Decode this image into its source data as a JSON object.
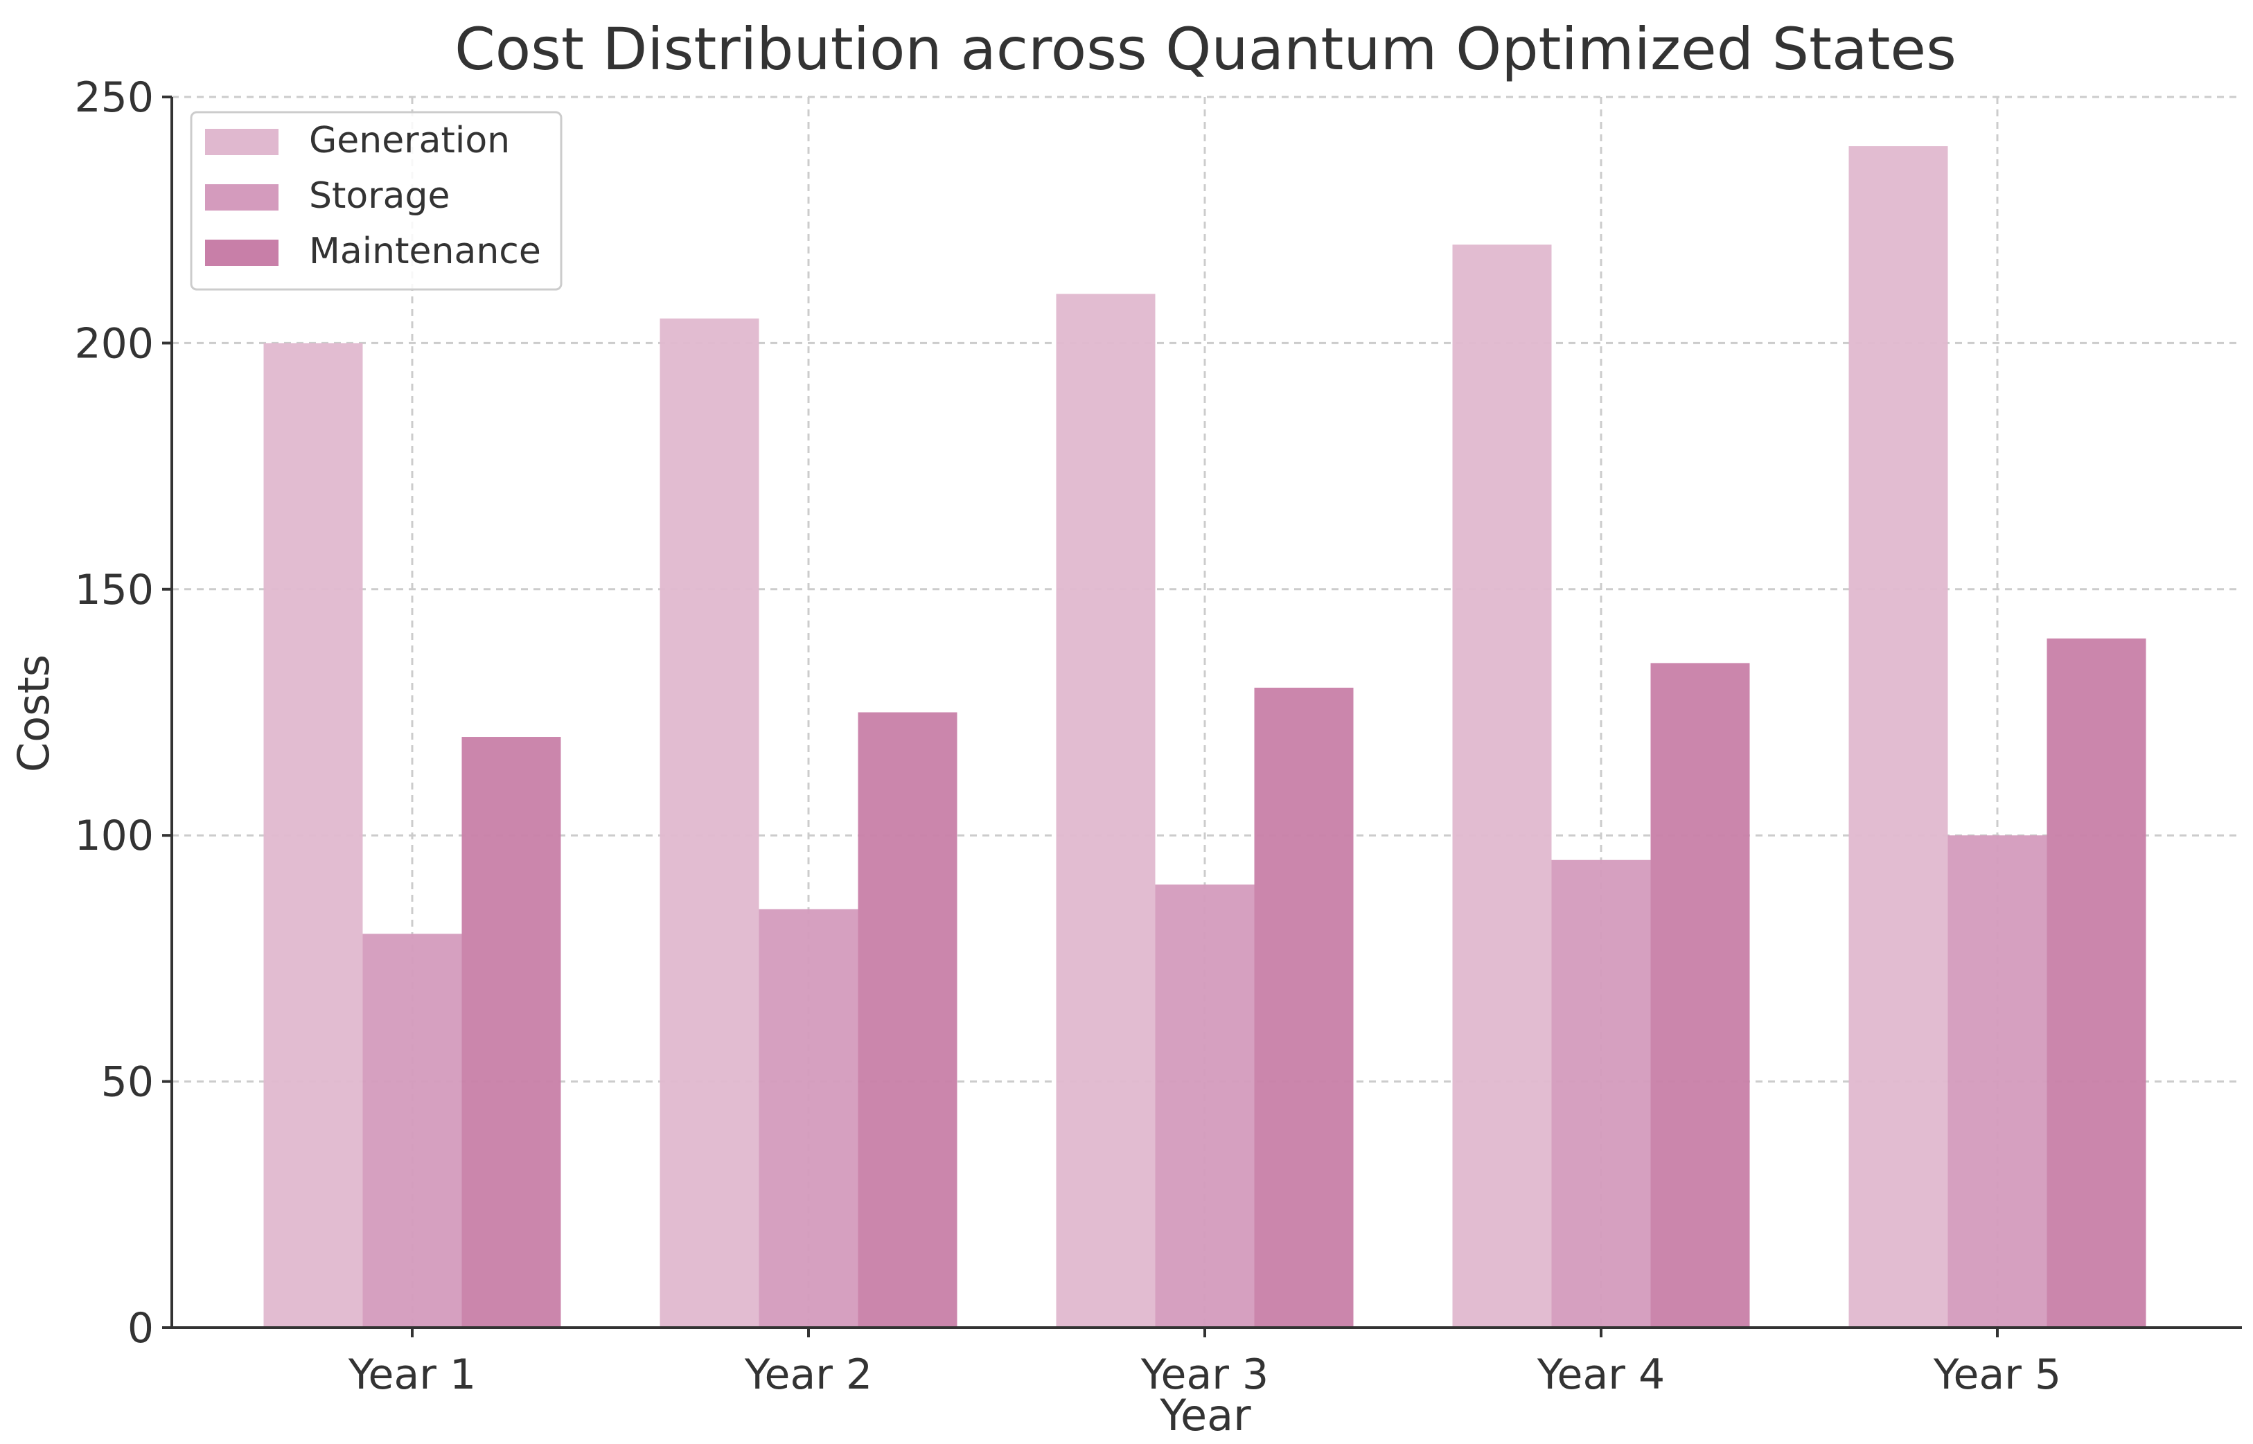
{
  "chart_data": {
    "type": "bar",
    "title": "Cost Distribution across Quantum Optimized States",
    "xlabel": "Year",
    "ylabel": "Costs",
    "categories": [
      "Year 1",
      "Year 2",
      "Year 3",
      "Year 4",
      "Year 5"
    ],
    "series": [
      {
        "name": "Generation",
        "color": "#e0b8cf",
        "values": [
          200,
          205,
          210,
          220,
          240
        ]
      },
      {
        "name": "Storage",
        "color": "#d49bbd",
        "values": [
          80,
          85,
          90,
          95,
          100
        ]
      },
      {
        "name": "Maintenance",
        "color": "#c87fa8",
        "values": [
          120,
          125,
          130,
          135,
          140
        ]
      }
    ],
    "ylim": [
      0,
      250
    ],
    "yticks": [
      0,
      50,
      100,
      150,
      200,
      250
    ],
    "grid": true,
    "legend_position": "top-left"
  }
}
